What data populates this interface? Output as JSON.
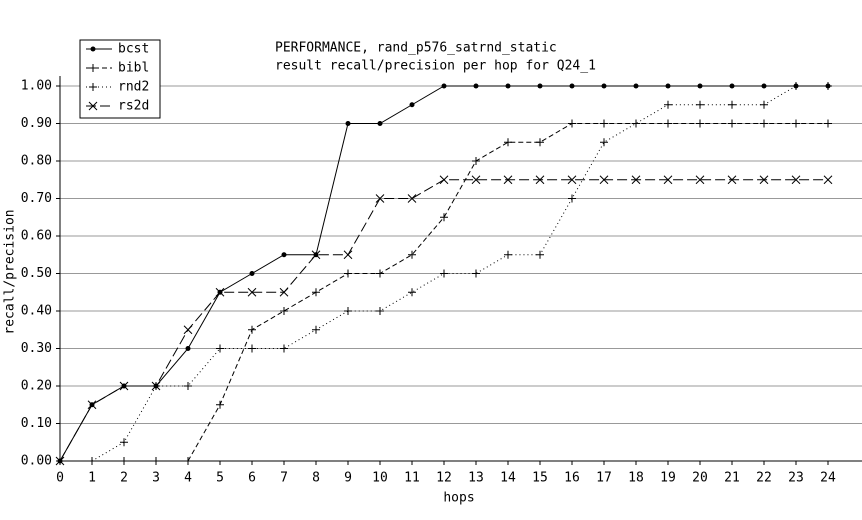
{
  "chart_data": {
    "type": "line",
    "title": "PERFORMANCE, rand_p576_satrnd_static",
    "subtitle": "result recall/precision per hop for Q24_1",
    "x_label": "hops",
    "y_label": "recall/precision",
    "x": [
      0,
      1,
      2,
      3,
      4,
      5,
      6,
      7,
      8,
      9,
      10,
      11,
      12,
      13,
      14,
      15,
      16,
      17,
      18,
      19,
      20,
      21,
      22,
      23,
      24
    ],
    "series": [
      {
        "name": "bcst",
        "color": "#000000",
        "dash": "solid",
        "marker": "dot",
        "values": [
          0,
          0.15,
          0.2,
          0.2,
          0.3,
          0.45,
          0.5,
          0.55,
          0.55,
          0.9,
          0.9,
          0.95,
          1,
          1,
          1,
          1,
          1,
          1,
          1,
          1,
          1,
          1,
          1,
          1,
          1
        ]
      },
      {
        "name": "bibl",
        "color": "#000000",
        "dash": "dashed",
        "marker": "plus",
        "values": [
          0,
          0,
          0,
          0,
          0,
          0.15,
          0.35,
          0.4,
          0.45,
          0.5,
          0.5,
          0.55,
          0.65,
          0.8,
          0.85,
          0.85,
          0.9,
          0.9,
          0.9,
          0.9,
          0.9,
          0.9,
          0.9,
          0.9,
          0.9
        ]
      },
      {
        "name": "rnd2",
        "color": "#000000",
        "dash": "dotted",
        "marker": "plus",
        "values": [
          0,
          0,
          0.05,
          0.2,
          0.2,
          0.3,
          0.3,
          0.3,
          0.35,
          0.4,
          0.4,
          0.45,
          0.5,
          0.5,
          0.55,
          0.55,
          0.7,
          0.85,
          0.9,
          0.95,
          0.95,
          0.95,
          0.95,
          1,
          1
        ]
      },
      {
        "name": "rs2d",
        "color": "#000000",
        "dash": "dashdot",
        "marker": "cross",
        "values": [
          0,
          0.15,
          0.2,
          0.2,
          0.35,
          0.45,
          0.45,
          0.45,
          0.55,
          0.55,
          0.7,
          0.7,
          0.75,
          0.75,
          0.75,
          0.75,
          0.75,
          0.75,
          0.75,
          0.75,
          0.75,
          0.75,
          0.75,
          0.75,
          0.75
        ]
      }
    ],
    "xlim": [
      0,
      24
    ],
    "xticks": [
      0,
      1,
      2,
      3,
      4,
      5,
      6,
      7,
      8,
      9,
      10,
      11,
      12,
      13,
      14,
      15,
      16,
      17,
      18,
      19,
      20,
      21,
      22,
      23,
      24
    ],
    "ylim": [
      0,
      1
    ],
    "yticks": [
      {
        "value": 0,
        "label": "0.00"
      },
      {
        "value": 0.1,
        "label": "0.10"
      },
      {
        "value": 0.2,
        "label": "0.20"
      },
      {
        "value": 0.3,
        "label": "0.30"
      },
      {
        "value": 0.4,
        "label": "0.40"
      },
      {
        "value": 0.5,
        "label": "0.50"
      },
      {
        "value": 0.6,
        "label": "0.60"
      },
      {
        "value": 0.7,
        "label": "0.70"
      },
      {
        "value": 0.8,
        "label": "0.80"
      },
      {
        "value": 0.9,
        "label": "0.90"
      },
      {
        "value": 1,
        "label": "1.00"
      }
    ],
    "grid": true,
    "legend": "top-left"
  }
}
